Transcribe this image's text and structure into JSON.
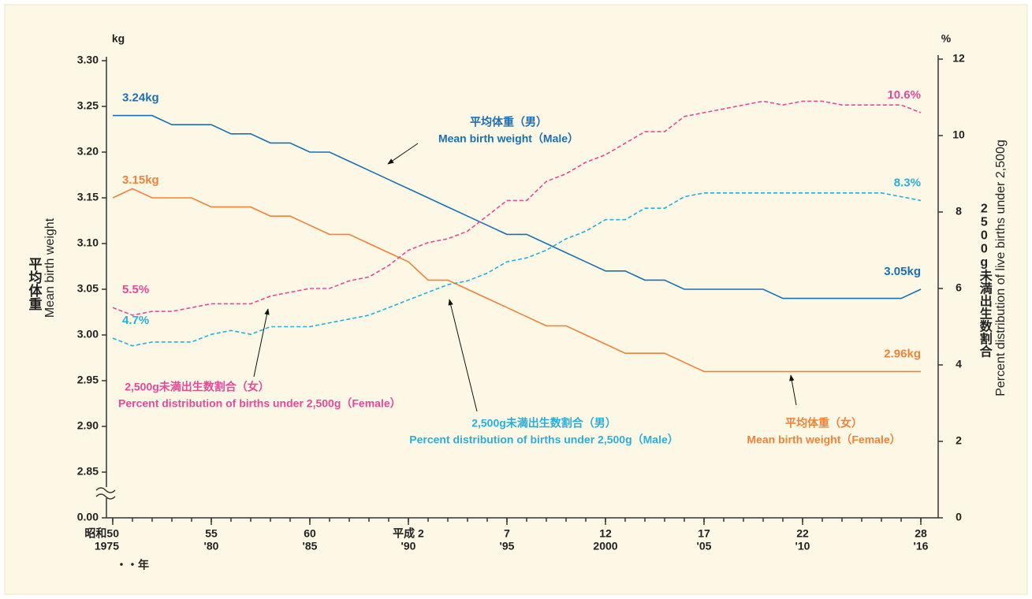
{
  "chart_data": {
    "type": "line",
    "y_unit": "kg",
    "y2_unit": "%",
    "ylabel": "平均体重",
    "ylabel_en": "Mean birth weight",
    "y2label": "2500g未満出生数割合",
    "y2label_en": "Percent distribution of live births under 2,500g",
    "x_unit": "・・年",
    "axis_break": true,
    "x": [
      1975,
      1976,
      1977,
      1978,
      1979,
      1980,
      1981,
      1982,
      1983,
      1984,
      1985,
      1986,
      1987,
      1988,
      1989,
      1990,
      1991,
      1992,
      1993,
      1994,
      1995,
      1996,
      1997,
      1998,
      1999,
      2000,
      2001,
      2002,
      2003,
      2004,
      2005,
      2006,
      2007,
      2008,
      2009,
      2010,
      2011,
      2012,
      2013,
      2014,
      2015,
      2016
    ],
    "xlim": [
      1975,
      2017
    ],
    "xticks": [
      {
        "value": 1975,
        "label": [
          "昭和50",
          "1975"
        ]
      },
      {
        "value": 1980,
        "label": [
          "55",
          "'80"
        ]
      },
      {
        "value": 1985,
        "label": [
          "60",
          "'85"
        ]
      },
      {
        "value": 1990,
        "label": [
          "平成 2",
          "'90"
        ]
      },
      {
        "value": 1995,
        "label": [
          "7",
          "'95"
        ]
      },
      {
        "value": 2000,
        "label": [
          "12",
          "2000"
        ]
      },
      {
        "value": 2005,
        "label": [
          "17",
          "'05"
        ]
      },
      {
        "value": 2010,
        "label": [
          "22",
          "'10"
        ]
      },
      {
        "value": 2016,
        "label": [
          "28",
          "'16"
        ]
      }
    ],
    "ylim": [
      2.8,
      3.3
    ],
    "yticks": [
      {
        "value": 0,
        "label": "0.00"
      },
      {
        "value": 2.85,
        "label": "2.85"
      },
      {
        "value": 2.9,
        "label": "2.90"
      },
      {
        "value": 2.95,
        "label": "2.95"
      },
      {
        "value": 3,
        "label": "3.00"
      },
      {
        "value": 3.05,
        "label": "3.05"
      },
      {
        "value": 3.1,
        "label": "3.10"
      },
      {
        "value": 3.15,
        "label": "3.15"
      },
      {
        "value": 3.2,
        "label": "3.20"
      },
      {
        "value": 3.25,
        "label": "3.25"
      },
      {
        "value": 3.3,
        "label": "3.30"
      }
    ],
    "y2lim": [
      0,
      12
    ],
    "y2ticks": [
      0,
      2,
      4,
      6,
      8,
      10,
      12
    ],
    "series": [
      {
        "name": "平均体重（男）",
        "name_en": "Mean birth weight（Male）",
        "color": "#1a6fb5",
        "dashed": false,
        "axis": "y",
        "first_label": "3.24kg",
        "last_label": "3.05kg",
        "values": [
          3.24,
          3.24,
          3.24,
          3.23,
          3.23,
          3.23,
          3.22,
          3.22,
          3.21,
          3.21,
          3.2,
          3.2,
          3.19,
          3.18,
          3.17,
          3.16,
          3.15,
          3.14,
          3.13,
          3.12,
          3.11,
          3.11,
          3.1,
          3.09,
          3.08,
          3.07,
          3.07,
          3.06,
          3.06,
          3.05,
          3.05,
          3.05,
          3.05,
          3.05,
          3.04,
          3.04,
          3.04,
          3.04,
          3.04,
          3.04,
          3.04,
          3.05
        ]
      },
      {
        "name": "平均体重（女）",
        "name_en": "Mean birth weight（Female）",
        "color": "#f0823a",
        "dashed": false,
        "axis": "y",
        "first_label": "3.15kg",
        "last_label": "2.96kg",
        "values": [
          3.15,
          3.16,
          3.15,
          3.15,
          3.15,
          3.14,
          3.14,
          3.14,
          3.13,
          3.13,
          3.12,
          3.11,
          3.11,
          3.1,
          3.09,
          3.08,
          3.06,
          3.06,
          3.05,
          3.04,
          3.03,
          3.02,
          3.01,
          3.01,
          3.0,
          2.99,
          2.98,
          2.98,
          2.98,
          2.97,
          2.96,
          2.96,
          2.96,
          2.96,
          2.96,
          2.96,
          2.96,
          2.96,
          2.96,
          2.96,
          2.96,
          2.96
        ]
      },
      {
        "name": "2,500g未満出生数割合（女）",
        "name_en": "Percent distribution of births under 2,500g（Female）",
        "color": "#e8489a",
        "dashed": true,
        "axis": "y2",
        "first_label": "5.5%",
        "last_label": "10.6%",
        "values": [
          5.5,
          5.3,
          5.4,
          5.4,
          5.5,
          5.6,
          5.6,
          5.6,
          5.8,
          5.9,
          6.0,
          6.0,
          6.2,
          6.3,
          6.6,
          7.0,
          7.2,
          7.3,
          7.5,
          7.9,
          8.3,
          8.3,
          8.8,
          9.0,
          9.3,
          9.5,
          9.8,
          10.1,
          10.1,
          10.5,
          10.6,
          10.7,
          10.8,
          10.9,
          10.8,
          10.9,
          10.9,
          10.8,
          10.8,
          10.8,
          10.8,
          10.6
        ]
      },
      {
        "name": "2,500g未満出生数割合（男）",
        "name_en": "Percent distribution of births under 2,500g（Male）",
        "color": "#29aee0",
        "dashed": true,
        "axis": "y2",
        "first_label": "4.7%",
        "last_label": "8.3%",
        "values": [
          4.7,
          4.5,
          4.6,
          4.6,
          4.6,
          4.8,
          4.9,
          4.8,
          5.0,
          5.0,
          5.0,
          5.1,
          5.2,
          5.3,
          5.5,
          5.7,
          5.9,
          6.1,
          6.2,
          6.4,
          6.7,
          6.8,
          7.0,
          7.3,
          7.5,
          7.8,
          7.8,
          8.1,
          8.1,
          8.4,
          8.5,
          8.5,
          8.5,
          8.5,
          8.5,
          8.5,
          8.5,
          8.5,
          8.5,
          8.5,
          8.4,
          8.3
        ]
      }
    ]
  }
}
